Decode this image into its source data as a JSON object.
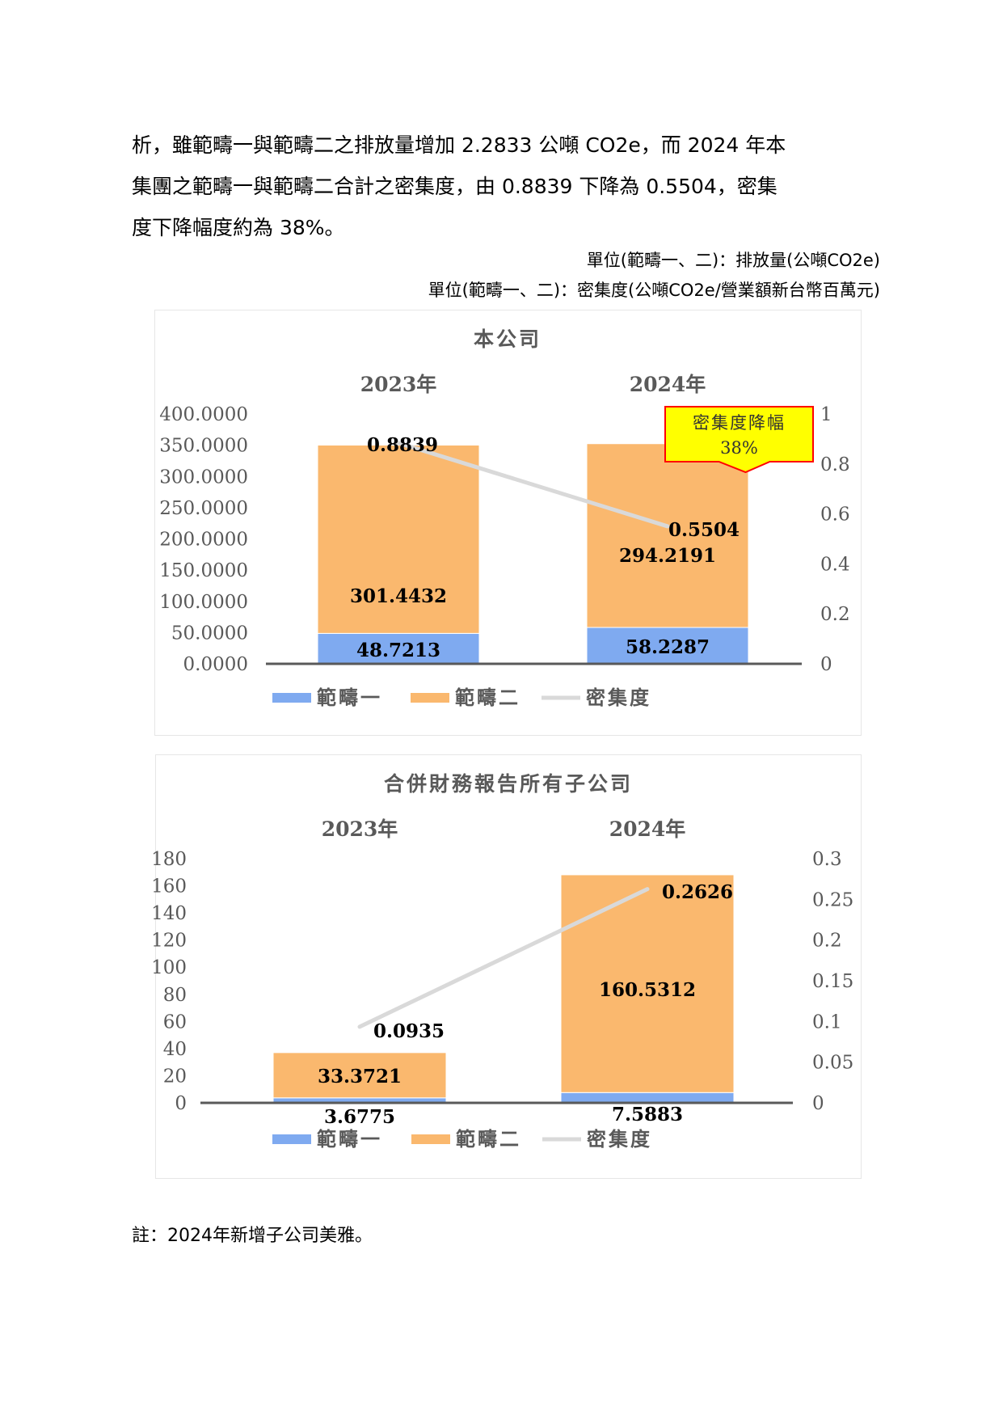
{
  "intro": {
    "lines": [
      "析，雖範疇一與範疇二之排放量增加 2.2833 公噸 CO2e，而 2024 年本",
      "集團之範疇一與範疇二合計之密集度，由 0.8839 下降為 0.5504，密集",
      "度下降幅度約為 38%。"
    ]
  },
  "units": {
    "emission": "單位(範疇一、二)：排放量(公噸CO2e)",
    "intensity": "單位(範疇一、二)：密集度(公噸CO2e/營業額新台幣百萬元)"
  },
  "colors": {
    "scope1": "#7faaf0",
    "scope2": "#fab86e",
    "intensity_line": "#d9d9d9",
    "axis": "#595959",
    "text_gray": "#595959",
    "callout_fill": "#ffff00",
    "callout_border": "#ff0000"
  },
  "chart_data": [
    {
      "type": "bar",
      "stacked": true,
      "title": "本公司",
      "categories": [
        "2023年",
        "2024年"
      ],
      "series": [
        {
          "name": "範疇一",
          "values": [
            48.7213,
            58.2287
          ],
          "labels": [
            "48.7213",
            "58.2287"
          ]
        },
        {
          "name": "範疇二",
          "values": [
            301.4432,
            294.2191
          ],
          "labels": [
            "301.4432",
            "294.2191"
          ]
        }
      ],
      "line_series": {
        "name": "密集度",
        "values": [
          0.8839,
          0.5504
        ],
        "labels": [
          "0.8839",
          "0.5504"
        ],
        "axis": "right"
      },
      "ylim": [
        0,
        400
      ],
      "y_ticks": [
        "0.0000",
        "50.0000",
        "100.0000",
        "150.0000",
        "200.0000",
        "250.0000",
        "300.0000",
        "350.0000",
        "400.0000"
      ],
      "y2lim": [
        0,
        1
      ],
      "y2_ticks": [
        "0",
        "0.2",
        "0.4",
        "0.6",
        "0.8",
        "1"
      ],
      "callout": {
        "text_line1": "密集度降幅",
        "text_line2": "38%"
      },
      "legend": [
        "範疇一",
        "範疇二",
        "密集度"
      ],
      "legend_position": "bottom",
      "grid": false
    },
    {
      "type": "bar",
      "stacked": true,
      "title": "合併財務報告所有子公司",
      "categories": [
        "2023年",
        "2024年"
      ],
      "series": [
        {
          "name": "範疇一",
          "values": [
            3.6775,
            7.5883
          ],
          "labels": [
            "3.6775",
            "7.5883"
          ]
        },
        {
          "name": "範疇二",
          "values": [
            33.3721,
            160.5312
          ],
          "labels": [
            "33.3721",
            "160.5312"
          ]
        }
      ],
      "line_series": {
        "name": "密集度",
        "values": [
          0.0935,
          0.2626
        ],
        "labels": [
          "0.0935",
          "0.2626"
        ],
        "axis": "right"
      },
      "ylim": [
        0,
        180
      ],
      "y_ticks": [
        "0",
        "20",
        "40",
        "60",
        "80",
        "100",
        "120",
        "140",
        "160",
        "180"
      ],
      "y2lim": [
        0,
        0.3
      ],
      "y2_ticks": [
        "0",
        "0.05",
        "0.1",
        "0.15",
        "0.2",
        "0.25",
        "0.3"
      ],
      "legend": [
        "範疇一",
        "範疇二",
        "密集度"
      ],
      "legend_position": "bottom",
      "grid": false
    }
  ],
  "footnote": "註：2024年新增子公司美雅。"
}
